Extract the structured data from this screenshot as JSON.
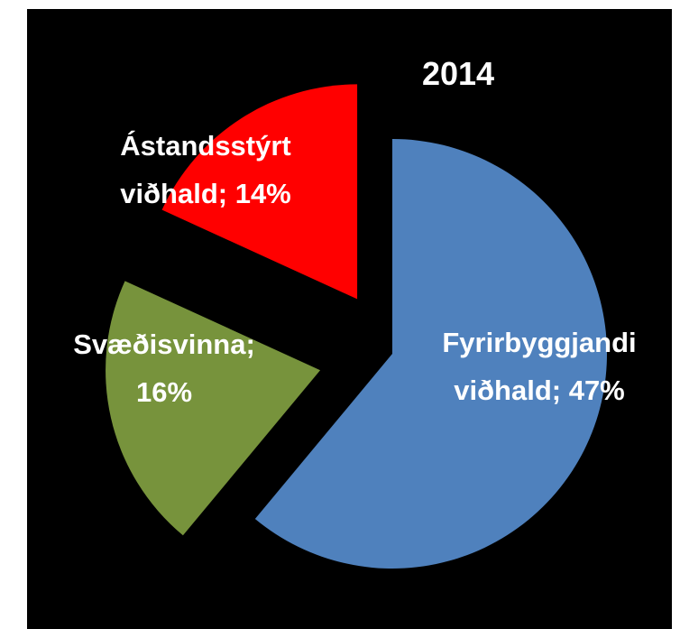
{
  "chart_data": {
    "type": "pie",
    "title": "2014",
    "values": [
      47,
      16,
      14
    ],
    "value_labels": [
      [
        "Fyrirbyggjandi",
        "viðhald; 47%"
      ],
      [
        "Svæðisvinna;",
        "16%"
      ],
      [
        "Ástandsstýrt",
        "viðhald; 14%"
      ]
    ],
    "colors": [
      "#4f81bd",
      "#77933c",
      "#ff0000"
    ]
  }
}
